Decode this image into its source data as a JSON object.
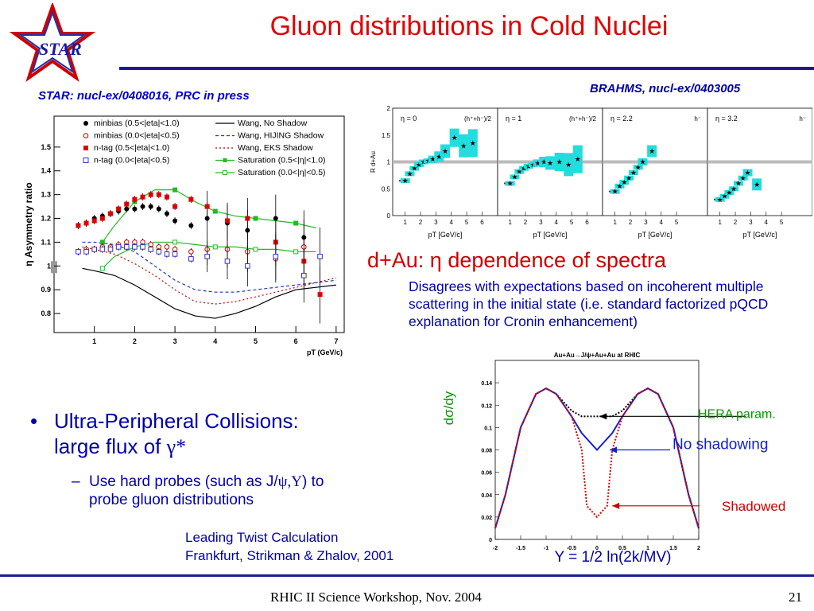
{
  "slide": {
    "title": "Gluon distributions in Cold Nuclei",
    "logo_text": "STAR",
    "star_citation": "STAR: nucl-ex/0408016, PRC in press",
    "brahms_citation": "BRAHMS, nucl-ex/0403005",
    "subtitle": "d+Au: η dependence of spectra",
    "description": "Disagrees with expectations based on incoherent multiple scattering in the initial state (i.e. standard factorized pQCD explanation for Cronin enhancement)",
    "bullet_line1": "Ultra-Peripheral Collisions:",
    "bullet_line2_prefix": "large flux of ",
    "bullet_line2_sym": "γ*",
    "sub_line1_prefix": "Use hard probes (such as J/",
    "sub_line1_sym": "ψ,Υ",
    "sub_line1_suffix": ") to",
    "sub_line2": "probe gluon distributions",
    "calc_line1": "Leading Twist Calculation",
    "calc_line2": "Frankfurt, Strikman & Zhalov, 2001",
    "footer_left": "RHIC II Science Workshop, Nov. 2004",
    "footer_right": "21",
    "colors": {
      "title": "#e00000",
      "text": "#0000aa",
      "rule": "#1a1a99"
    }
  },
  "chart_data": [
    {
      "type": "scatter",
      "ylabel": "η Asymmetry ratio",
      "xlabel": "pT (GeV/c)",
      "xlim": [
        0,
        7.2
      ],
      "ylim": [
        0.72,
        1.63
      ],
      "x_ticks": [
        "1",
        "2",
        "3",
        "4",
        "5",
        "6",
        "7"
      ],
      "y_ticks": [
        "0.8",
        "0.9",
        "1",
        "1.1",
        "1.2",
        "1.3",
        "1.4",
        "1.5"
      ],
      "legend": [
        "minbias (0.5<|eta|<1.0)",
        "minbias (0.0<|eta|<0.5)",
        "n-tag  (0.5<|eta|<1.0)",
        "n-tag  (0.0<|eta|<0.5)",
        "Wang, No Shadow",
        "Wang, HIJING Shadow",
        "Wang, EKS Shadow",
        "Saturation (0.5<|η|<1.0)",
        "Saturation (0.0<|η|<0.5)"
      ],
      "series": [
        {
          "color": "#000000",
          "marker": "filled-circle",
          "x": [
            0.6,
            0.8,
            1.0,
            1.2,
            1.4,
            1.6,
            1.8,
            2.0,
            2.2,
            2.4,
            2.6,
            2.8,
            3.0,
            3.4,
            3.8,
            4.3,
            4.8,
            5.5,
            6.2
          ],
          "y": [
            1.17,
            1.18,
            1.2,
            1.21,
            1.22,
            1.23,
            1.24,
            1.24,
            1.25,
            1.25,
            1.24,
            1.22,
            1.19,
            1.17,
            1.2,
            1.18,
            1.15,
            1.2,
            1.12
          ]
        },
        {
          "color": "#cc0000",
          "marker": "open-circle",
          "x": [
            0.6,
            0.8,
            1.0,
            1.2,
            1.4,
            1.6,
            1.8,
            2.0,
            2.2,
            2.4,
            2.6,
            2.8,
            3.0,
            3.4,
            3.8,
            4.3,
            4.8,
            5.5,
            6.2
          ],
          "y": [
            1.06,
            1.07,
            1.07,
            1.08,
            1.08,
            1.09,
            1.1,
            1.1,
            1.1,
            1.09,
            1.08,
            1.08,
            1.07,
            1.06,
            1.07,
            1.07,
            1.06,
            1.03,
            1.08
          ]
        },
        {
          "color": "#dd0000",
          "marker": "filled-square",
          "x": [
            0.6,
            0.8,
            1.0,
            1.2,
            1.4,
            1.6,
            1.8,
            2.0,
            2.2,
            2.4,
            2.6,
            2.8,
            3.0,
            3.4,
            3.8,
            4.3,
            4.8,
            5.5,
            6.2,
            6.6
          ],
          "y": [
            1.17,
            1.18,
            1.19,
            1.2,
            1.22,
            1.24,
            1.26,
            1.28,
            1.29,
            1.3,
            1.3,
            1.29,
            1.25,
            1.28,
            1.25,
            1.19,
            1.2,
            1.1,
            1.02,
            0.88
          ]
        },
        {
          "color": "#3333cc",
          "marker": "open-square",
          "x": [
            0.6,
            0.8,
            1.0,
            1.2,
            1.4,
            1.6,
            1.8,
            2.0,
            2.2,
            2.4,
            2.6,
            2.8,
            3.0,
            3.4,
            3.8,
            4.3,
            4.8,
            5.5,
            6.2,
            6.6
          ],
          "y": [
            1.06,
            1.06,
            1.07,
            1.07,
            1.07,
            1.08,
            1.08,
            1.08,
            1.08,
            1.07,
            1.06,
            1.05,
            1.05,
            1.03,
            1.04,
            1.02,
            1.0,
            1.04,
            0.96,
            1.04
          ]
        }
      ],
      "curves": [
        {
          "name": "Wang, No Shadow",
          "color": "#000000",
          "dash": "",
          "x": [
            0.7,
            1.0,
            1.5,
            2.0,
            2.5,
            3.0,
            3.5,
            4.0,
            4.5,
            5.0,
            5.5,
            6.0,
            6.5,
            7.0
          ],
          "y": [
            0.99,
            0.98,
            0.96,
            0.92,
            0.87,
            0.82,
            0.79,
            0.78,
            0.8,
            0.83,
            0.87,
            0.9,
            0.91,
            0.92
          ]
        },
        {
          "name": "Wang, HIJING Shadow",
          "color": "#2233cc",
          "dash": "4,3",
          "x": [
            0.7,
            1.0,
            1.5,
            2.0,
            2.5,
            3.0,
            3.5,
            4.0,
            4.5,
            5.0,
            5.5,
            6.0,
            6.5,
            7.0
          ],
          "y": [
            1.1,
            1.1,
            1.09,
            1.06,
            1.0,
            0.94,
            0.9,
            0.89,
            0.89,
            0.9,
            0.91,
            0.92,
            0.93,
            0.94
          ]
        },
        {
          "name": "Wang, EKS Shadow",
          "color": "#cc0000",
          "dash": "2,3",
          "x": [
            0.7,
            1.0,
            1.5,
            2.0,
            2.5,
            3.0,
            3.5,
            4.0,
            4.5,
            5.0,
            5.5,
            6.0,
            6.5,
            7.0
          ],
          "y": [
            1.08,
            1.07,
            1.05,
            1.01,
            0.96,
            0.9,
            0.85,
            0.84,
            0.85,
            0.87,
            0.89,
            0.91,
            0.93,
            0.95
          ]
        },
        {
          "name": "Saturation (0.5<|η|<1.0)",
          "color": "#22bb22",
          "dash": "",
          "x": [
            1.2,
            1.5,
            2.0,
            2.5,
            3.0,
            3.5,
            4.0,
            4.5,
            5.0,
            5.5,
            6.0,
            6.5
          ],
          "y": [
            1.1,
            1.17,
            1.27,
            1.32,
            1.32,
            1.27,
            1.23,
            1.21,
            1.2,
            1.19,
            1.18,
            1.16
          ]
        },
        {
          "name": "Saturation (0.0<|η|<0.5)",
          "color": "#22bb22",
          "dash": "",
          "x": [
            1.2,
            1.5,
            2.0,
            2.5,
            3.0,
            3.5,
            4.0,
            4.5,
            5.0,
            5.5,
            6.0,
            6.5
          ],
          "y": [
            0.99,
            1.04,
            1.08,
            1.1,
            1.1,
            1.09,
            1.08,
            1.08,
            1.07,
            1.07,
            1.06,
            1.06
          ]
        }
      ]
    },
    {
      "type": "scatter",
      "ylabel": "R d+Au",
      "xlabel": "pT [GeV/c]",
      "ylim": [
        0,
        2
      ],
      "y_ticks": [
        "0",
        "0.5",
        "1",
        "1.5",
        "2"
      ],
      "x_ticks": [
        "1",
        "2",
        "3",
        "4",
        "5",
        "6"
      ],
      "panels": [
        {
          "label": "η = 0",
          "species": "(h⁺+h⁻)/2",
          "x": [
            1.0,
            1.3,
            1.6,
            1.9,
            2.2,
            2.5,
            2.8,
            3.2,
            3.6,
            4.2,
            4.8,
            5.4
          ],
          "y": [
            0.65,
            0.78,
            0.88,
            0.95,
            1.0,
            1.02,
            1.05,
            1.1,
            1.2,
            1.45,
            1.3,
            1.35
          ]
        },
        {
          "label": "η = 1",
          "species": "(h⁺+h⁻)/2",
          "x": [
            1.0,
            1.3,
            1.6,
            1.9,
            2.2,
            2.5,
            2.8,
            3.2,
            3.6,
            4.2,
            4.8,
            5.4
          ],
          "y": [
            0.6,
            0.72,
            0.82,
            0.88,
            0.92,
            0.95,
            0.98,
            1.0,
            0.98,
            1.0,
            0.95,
            1.05
          ]
        },
        {
          "label": "η = 2.2",
          "species": "h⁻",
          "x": [
            1.0,
            1.3,
            1.6,
            1.9,
            2.2,
            2.5,
            2.8,
            3.4
          ],
          "y": [
            0.45,
            0.55,
            0.62,
            0.7,
            0.8,
            0.9,
            1.0,
            1.2
          ]
        },
        {
          "label": "η = 3.2",
          "species": "h⁻",
          "x": [
            1.0,
            1.3,
            1.6,
            1.9,
            2.2,
            2.5,
            2.8,
            3.4
          ],
          "y": [
            0.3,
            0.36,
            0.43,
            0.5,
            0.6,
            0.7,
            0.8,
            0.58
          ]
        }
      ]
    },
    {
      "type": "line",
      "title": "Au+Au→J/ψ+Au+Au at RHIC",
      "ylabel": "dσ/dy",
      "xlabel": "Y = 1/2 ln(2k/MV)",
      "xlim": [
        -2,
        2
      ],
      "ylim": [
        0,
        0.16
      ],
      "x_ticks": [
        "-2",
        "-1.5",
        "-1",
        "-0.5",
        "0",
        "0.5",
        "1",
        "1.5",
        "2"
      ],
      "y_ticks": [
        "0",
        "0.02",
        "0.04",
        "0.06",
        "0.08",
        "0.1",
        "0.12",
        "0.14"
      ],
      "series": [
        {
          "name": "HERA param.",
          "color": "#000000",
          "dash": "2,2",
          "x": [
            -2,
            -1.8,
            -1.5,
            -1.2,
            -1.0,
            -0.8,
            -0.5,
            -0.3,
            0,
            0.3,
            0.5,
            0.8,
            1.0,
            1.2,
            1.5,
            1.8,
            2
          ],
          "y": [
            0.01,
            0.04,
            0.1,
            0.13,
            0.135,
            0.13,
            0.115,
            0.11,
            0.11,
            0.11,
            0.115,
            0.13,
            0.135,
            0.13,
            0.1,
            0.04,
            0.01
          ]
        },
        {
          "name": "No shadowing",
          "color": "#1122cc",
          "dash": "",
          "x": [
            -2,
            -1.8,
            -1.5,
            -1.2,
            -1.0,
            -0.8,
            -0.5,
            -0.3,
            0,
            0.3,
            0.5,
            0.8,
            1.0,
            1.2,
            1.5,
            1.8,
            2
          ],
          "y": [
            0.01,
            0.04,
            0.1,
            0.13,
            0.135,
            0.13,
            0.11,
            0.095,
            0.08,
            0.095,
            0.11,
            0.13,
            0.135,
            0.13,
            0.1,
            0.04,
            0.01
          ]
        },
        {
          "name": "Shadowed",
          "color": "#dd0000",
          "dash": "2,2",
          "x": [
            -2,
            -1.8,
            -1.5,
            -1.2,
            -1.0,
            -0.8,
            -0.5,
            -0.3,
            -0.2,
            0,
            0.2,
            0.3,
            0.5,
            0.8,
            1.0,
            1.2,
            1.5,
            1.8,
            2
          ],
          "y": [
            0.01,
            0.04,
            0.1,
            0.13,
            0.135,
            0.13,
            0.11,
            0.08,
            0.03,
            0.02,
            0.03,
            0.08,
            0.11,
            0.13,
            0.135,
            0.13,
            0.1,
            0.04,
            0.01
          ]
        }
      ],
      "annotations": [
        "HERA param.",
        "No shadowing",
        "Shadowed"
      ]
    }
  ]
}
